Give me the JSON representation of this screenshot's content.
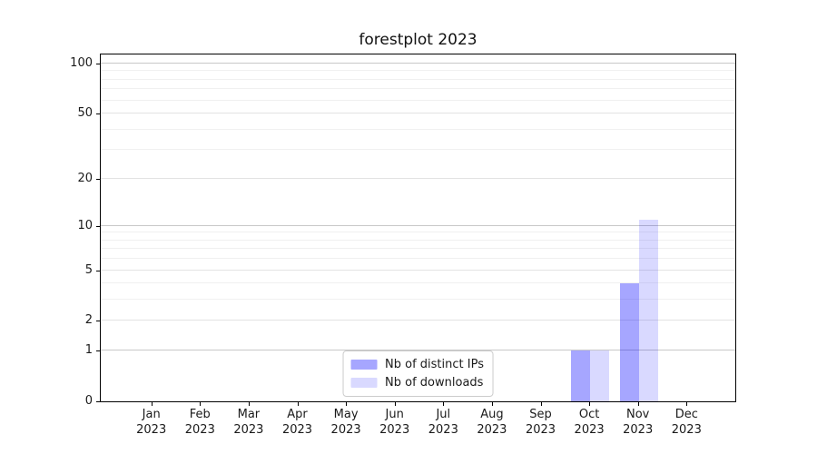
{
  "figure": {
    "title": "forestplot 2023"
  },
  "chart_data": {
    "type": "bar",
    "title": "forestplot 2023",
    "categories": [
      "Jan 2023",
      "Feb 2023",
      "Mar 2023",
      "Apr 2023",
      "May 2023",
      "Jun 2023",
      "Jul 2023",
      "Aug 2023",
      "Sep 2023",
      "Oct 2023",
      "Nov 2023",
      "Dec 2023"
    ],
    "series": [
      {
        "name": "Nb of distinct IPs",
        "color": "rgba(0,0,255,0.35)",
        "color_on_white_hex": "#a6a6ff",
        "values": [
          0,
          0,
          0,
          0,
          0,
          0,
          0,
          0,
          0,
          1,
          4,
          0
        ]
      },
      {
        "name": "Nb of downloads",
        "color": "rgba(0,0,255,0.15)",
        "color_on_white_hex": "#d9d9ff",
        "values": [
          0,
          0,
          0,
          0,
          0,
          0,
          0,
          0,
          0,
          1,
          11,
          0
        ]
      }
    ],
    "xlabel": "",
    "ylabel": "",
    "yscale": "log1p",
    "yticks_labeled": [
      0,
      1,
      2,
      5,
      10,
      20,
      50,
      100
    ],
    "yticks_minor": [
      3,
      4,
      6,
      7,
      8,
      9,
      30,
      40,
      60,
      70,
      80,
      90
    ],
    "ylim": [
      0,
      116
    ],
    "grid": true,
    "legend_position": "lower center",
    "legend": [
      {
        "label": "Nb of distinct IPs",
        "swatch_color": "rgba(0,0,255,0.35)"
      },
      {
        "label": "Nb of downloads",
        "swatch_color": "rgba(0,0,255,0.15)"
      }
    ],
    "colors": {
      "background": "#ffffff",
      "axis": "#000000",
      "text": "#1a1a1a",
      "grid_decade": "#c8c8c8",
      "grid_labeled": "#e3e3e3",
      "grid_minor": "#f0f0f0",
      "legend_border": "#cccccc"
    }
  }
}
